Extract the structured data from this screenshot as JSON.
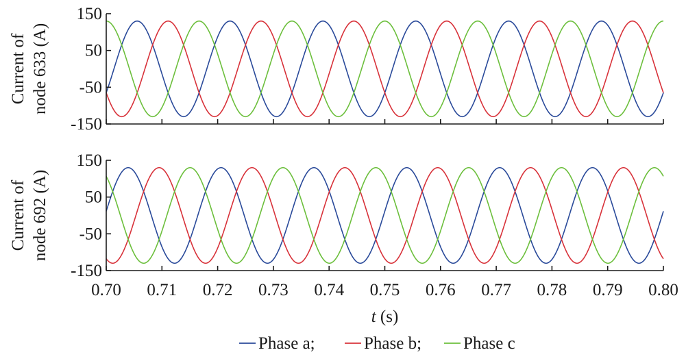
{
  "chart_data": {
    "type": "line",
    "shared_x": {
      "label_italic": "t",
      "label_unit": " (s)",
      "range": [
        0.7,
        0.8
      ],
      "ticks": [
        0.7,
        0.71,
        0.72,
        0.73,
        0.74,
        0.75,
        0.76,
        0.77,
        0.78,
        0.79,
        0.8
      ],
      "tick_labels": [
        "0.70",
        "0.71",
        "0.72",
        "0.73",
        "0.74",
        "0.75",
        "0.76",
        "0.77",
        "0.78",
        "0.79",
        "0.80"
      ]
    },
    "legend": {
      "placement": "bottom-center",
      "items": [
        {
          "label": "Phase a;",
          "color": "#2a4a9a"
        },
        {
          "label": "Phase b;",
          "color": "#d8323a"
        },
        {
          "label": "Phase c",
          "color": "#6cbf3c"
        }
      ]
    },
    "grid": false,
    "waveform": {
      "frequency_hz": 60,
      "amplitude_A": 130,
      "phase_shift_deg": 120
    },
    "panels": [
      {
        "ylabel_line1": "Current of",
        "ylabel_line2": "node 633 (A)",
        "ylim": [
          -150,
          150
        ],
        "yticks": [
          150,
          50,
          -50,
          -150
        ],
        "ytick_labels": [
          "150",
          "50",
          "-50",
          "-150"
        ],
        "series": [
          {
            "color": "#2a4a9a",
            "amplitude": 130,
            "phase_deg": -30
          },
          {
            "color": "#d8323a",
            "amplitude": 130,
            "phase_deg": -150
          },
          {
            "color": "#6cbf3c",
            "amplitude": 130,
            "phase_deg": 90
          }
        ]
      },
      {
        "ylabel_line1": "Current of",
        "ylabel_line2": "node 692 (A)",
        "ylim": [
          -150,
          150
        ],
        "yticks": [
          150,
          50,
          -50,
          -150
        ],
        "ytick_labels": [
          "150",
          "50",
          "-50",
          "-150"
        ],
        "series": [
          {
            "color": "#2a4a9a",
            "amplitude": 130,
            "phase_deg": 5
          },
          {
            "color": "#d8323a",
            "amplitude": 130,
            "phase_deg": -115
          },
          {
            "color": "#6cbf3c",
            "amplitude": 130,
            "phase_deg": 125
          }
        ]
      }
    ]
  }
}
